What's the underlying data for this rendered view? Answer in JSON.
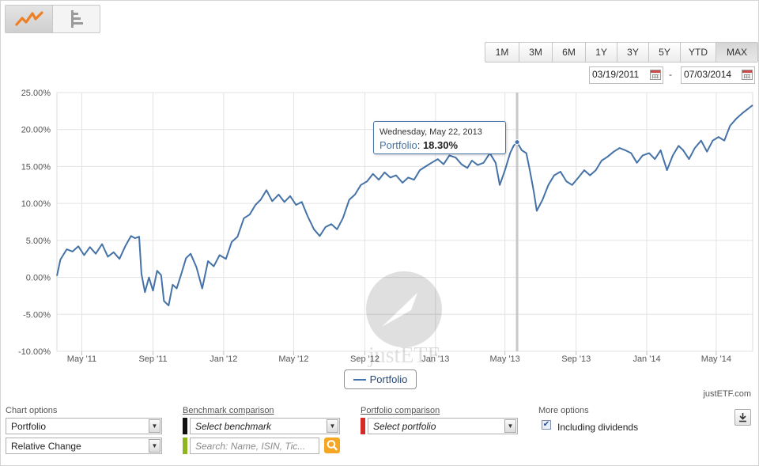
{
  "toolbar": {
    "views": [
      {
        "icon": "line-chart-icon",
        "active": true
      },
      {
        "icon": "bar-list-icon",
        "active": false
      }
    ],
    "ranges": [
      "1M",
      "3M",
      "6M",
      "1Y",
      "3Y",
      "5Y",
      "YTD",
      "MAX"
    ],
    "active_range": "MAX",
    "date_from": "03/19/2011",
    "date_separator": "-",
    "date_to": "07/03/2014"
  },
  "tooltip": {
    "date": "Wednesday, May 22, 2013",
    "series": "Portfolio",
    "separator": ":",
    "value": "18.30%"
  },
  "legend": {
    "label": "Portfolio"
  },
  "credit": "justETF.com",
  "watermark": "justETF",
  "options": {
    "chart_options": {
      "title": "Chart options",
      "select1": "Portfolio",
      "select2": "Relative Change"
    },
    "benchmark": {
      "title": "Benchmark comparison",
      "select": "Select benchmark",
      "search_placeholder": "Search: Name, ISIN, Tic...",
      "colors": [
        "#111111",
        "#8fb61f"
      ]
    },
    "portfolio_comparison": {
      "title": "Portfolio comparison",
      "select": "Select portfolio",
      "color": "#d92a2a"
    },
    "more": {
      "title": "More options",
      "dividends_label": "Including dividends",
      "dividends_checked": true
    }
  },
  "colors": {
    "series": "#4572a7",
    "grid": "#e3e3e3",
    "crosshair": "#c8c8c8",
    "accent": "#f5a623"
  },
  "chart_data": {
    "type": "line",
    "y_ticks": [
      "25.00%",
      "20.00%",
      "15.00%",
      "10.00%",
      "5.00%",
      "0.00%",
      "-5.00%",
      "-10.00%"
    ],
    "x_ticks": [
      "May '11",
      "Sep '11",
      "Jan '12",
      "May '12",
      "Sep '12",
      "Jan '13",
      "May '13",
      "Sep '13",
      "Jan '14",
      "May '14"
    ],
    "ylim": [
      -10,
      25
    ],
    "x_range": [
      "2011-03-19",
      "2014-07-03"
    ],
    "grid": true,
    "highlight": {
      "x": "2013-05-22",
      "y": 18.3
    },
    "series": [
      {
        "name": "Portfolio",
        "color": "#4572a7",
        "points": [
          [
            "2011-03-19",
            0.2
          ],
          [
            "2011-03-25",
            2.4
          ],
          [
            "2011-04-05",
            3.8
          ],
          [
            "2011-04-15",
            3.5
          ],
          [
            "2011-04-25",
            4.2
          ],
          [
            "2011-05-05",
            3.0
          ],
          [
            "2011-05-15",
            4.1
          ],
          [
            "2011-05-25",
            3.2
          ],
          [
            "2011-06-05",
            4.5
          ],
          [
            "2011-06-15",
            2.8
          ],
          [
            "2011-06-25",
            3.4
          ],
          [
            "2011-07-05",
            2.5
          ],
          [
            "2011-07-15",
            4.2
          ],
          [
            "2011-07-25",
            5.6
          ],
          [
            "2011-08-01",
            5.3
          ],
          [
            "2011-08-08",
            5.5
          ],
          [
            "2011-08-12",
            0.5
          ],
          [
            "2011-08-18",
            -2.0
          ],
          [
            "2011-08-25",
            0.0
          ],
          [
            "2011-09-01",
            -1.8
          ],
          [
            "2011-09-08",
            0.9
          ],
          [
            "2011-09-15",
            0.3
          ],
          [
            "2011-09-20",
            -3.2
          ],
          [
            "2011-09-28",
            -3.8
          ],
          [
            "2011-10-05",
            -1.0
          ],
          [
            "2011-10-12",
            -1.5
          ],
          [
            "2011-10-20",
            0.5
          ],
          [
            "2011-10-28",
            2.6
          ],
          [
            "2011-11-05",
            3.2
          ],
          [
            "2011-11-15",
            1.4
          ],
          [
            "2011-11-25",
            -1.5
          ],
          [
            "2011-12-05",
            2.2
          ],
          [
            "2011-12-15",
            1.5
          ],
          [
            "2011-12-25",
            3.0
          ],
          [
            "2012-01-05",
            2.5
          ],
          [
            "2012-01-15",
            4.8
          ],
          [
            "2012-01-25",
            5.5
          ],
          [
            "2012-02-05",
            8.0
          ],
          [
            "2012-02-15",
            8.5
          ],
          [
            "2012-02-25",
            9.8
          ],
          [
            "2012-03-05",
            10.5
          ],
          [
            "2012-03-15",
            11.8
          ],
          [
            "2012-03-25",
            10.3
          ],
          [
            "2012-04-05",
            11.2
          ],
          [
            "2012-04-15",
            10.2
          ],
          [
            "2012-04-25",
            11.0
          ],
          [
            "2012-05-05",
            9.8
          ],
          [
            "2012-05-15",
            10.2
          ],
          [
            "2012-05-25",
            8.3
          ],
          [
            "2012-06-05",
            6.5
          ],
          [
            "2012-06-15",
            5.6
          ],
          [
            "2012-06-25",
            6.8
          ],
          [
            "2012-07-05",
            7.2
          ],
          [
            "2012-07-15",
            6.5
          ],
          [
            "2012-07-25",
            8.0
          ],
          [
            "2012-08-05",
            10.5
          ],
          [
            "2012-08-15",
            11.2
          ],
          [
            "2012-08-25",
            12.5
          ],
          [
            "2012-09-05",
            13.0
          ],
          [
            "2012-09-15",
            14.0
          ],
          [
            "2012-09-25",
            13.2
          ],
          [
            "2012-10-05",
            14.2
          ],
          [
            "2012-10-15",
            13.5
          ],
          [
            "2012-10-25",
            13.8
          ],
          [
            "2012-11-05",
            12.8
          ],
          [
            "2012-11-15",
            13.5
          ],
          [
            "2012-11-25",
            13.2
          ],
          [
            "2012-12-05",
            14.5
          ],
          [
            "2012-12-15",
            15.0
          ],
          [
            "2012-12-25",
            15.5
          ],
          [
            "2013-01-05",
            16.0
          ],
          [
            "2013-01-15",
            15.3
          ],
          [
            "2013-01-25",
            16.5
          ],
          [
            "2013-02-05",
            16.2
          ],
          [
            "2013-02-15",
            15.3
          ],
          [
            "2013-02-25",
            14.8
          ],
          [
            "2013-03-05",
            15.8
          ],
          [
            "2013-03-15",
            15.2
          ],
          [
            "2013-03-25",
            15.5
          ],
          [
            "2013-04-05",
            16.8
          ],
          [
            "2013-04-15",
            15.5
          ],
          [
            "2013-04-22",
            12.5
          ],
          [
            "2013-05-01",
            14.5
          ],
          [
            "2013-05-10",
            16.8
          ],
          [
            "2013-05-16",
            17.8
          ],
          [
            "2013-05-22",
            18.3
          ],
          [
            "2013-05-30",
            17.2
          ],
          [
            "2013-06-07",
            16.8
          ],
          [
            "2013-06-13",
            14.5
          ],
          [
            "2013-06-20",
            11.5
          ],
          [
            "2013-06-25",
            9.0
          ],
          [
            "2013-07-05",
            10.5
          ],
          [
            "2013-07-15",
            12.5
          ],
          [
            "2013-07-25",
            13.8
          ],
          [
            "2013-08-05",
            14.3
          ],
          [
            "2013-08-15",
            13.0
          ],
          [
            "2013-08-25",
            12.5
          ],
          [
            "2013-09-05",
            13.5
          ],
          [
            "2013-09-15",
            14.5
          ],
          [
            "2013-09-25",
            13.8
          ],
          [
            "2013-10-05",
            14.5
          ],
          [
            "2013-10-15",
            15.8
          ],
          [
            "2013-10-25",
            16.3
          ],
          [
            "2013-11-05",
            17.0
          ],
          [
            "2013-11-15",
            17.5
          ],
          [
            "2013-11-25",
            17.2
          ],
          [
            "2013-12-05",
            16.8
          ],
          [
            "2013-12-15",
            15.5
          ],
          [
            "2013-12-25",
            16.5
          ],
          [
            "2014-01-05",
            16.8
          ],
          [
            "2014-01-15",
            16.0
          ],
          [
            "2014-01-25",
            17.2
          ],
          [
            "2014-02-05",
            14.5
          ],
          [
            "2014-02-15",
            16.5
          ],
          [
            "2014-02-25",
            17.8
          ],
          [
            "2014-03-05",
            17.2
          ],
          [
            "2014-03-15",
            16.0
          ],
          [
            "2014-03-25",
            17.5
          ],
          [
            "2014-04-05",
            18.5
          ],
          [
            "2014-04-15",
            17.0
          ],
          [
            "2014-04-25",
            18.5
          ],
          [
            "2014-05-05",
            19.0
          ],
          [
            "2014-05-15",
            18.5
          ],
          [
            "2014-05-25",
            20.5
          ],
          [
            "2014-06-05",
            21.5
          ],
          [
            "2014-06-15",
            22.2
          ],
          [
            "2014-06-25",
            22.8
          ],
          [
            "2014-07-03",
            23.3
          ]
        ]
      }
    ]
  }
}
